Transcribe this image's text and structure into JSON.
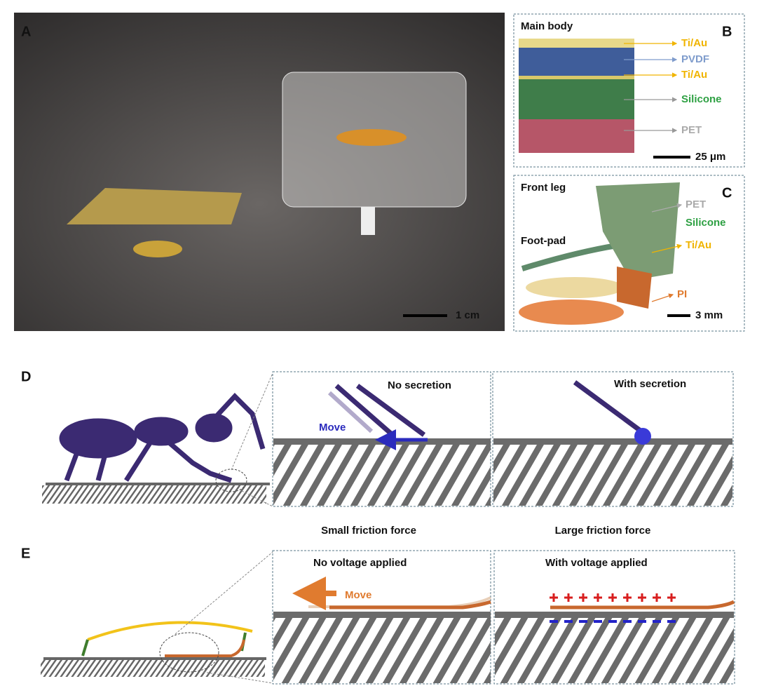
{
  "panels": {
    "a": {
      "label": "A",
      "scale_bar": "1 cm"
    },
    "b": {
      "label": "B",
      "title": "Main body",
      "layers": [
        "Ti/Au",
        "PVDF",
        "Ti/Au",
        "Silicone",
        "PET"
      ],
      "scale_bar": "25 μm"
    },
    "c": {
      "label": "C",
      "title": "Front leg",
      "subtitle": "Foot-pad",
      "layers": [
        "PET",
        "Silicone",
        "Ti/Au",
        "PI"
      ],
      "scale_bar": "3 mm"
    },
    "d": {
      "label": "D",
      "left": {
        "title": "No secretion",
        "arrow": "Move",
        "caption": "Small friction force"
      },
      "right": {
        "title": "With secretion",
        "caption": "Large friction force"
      }
    },
    "e": {
      "label": "E",
      "left": {
        "title": "No voltage applied",
        "arrow": "Move"
      },
      "right": {
        "title": "With voltage applied"
      }
    }
  }
}
